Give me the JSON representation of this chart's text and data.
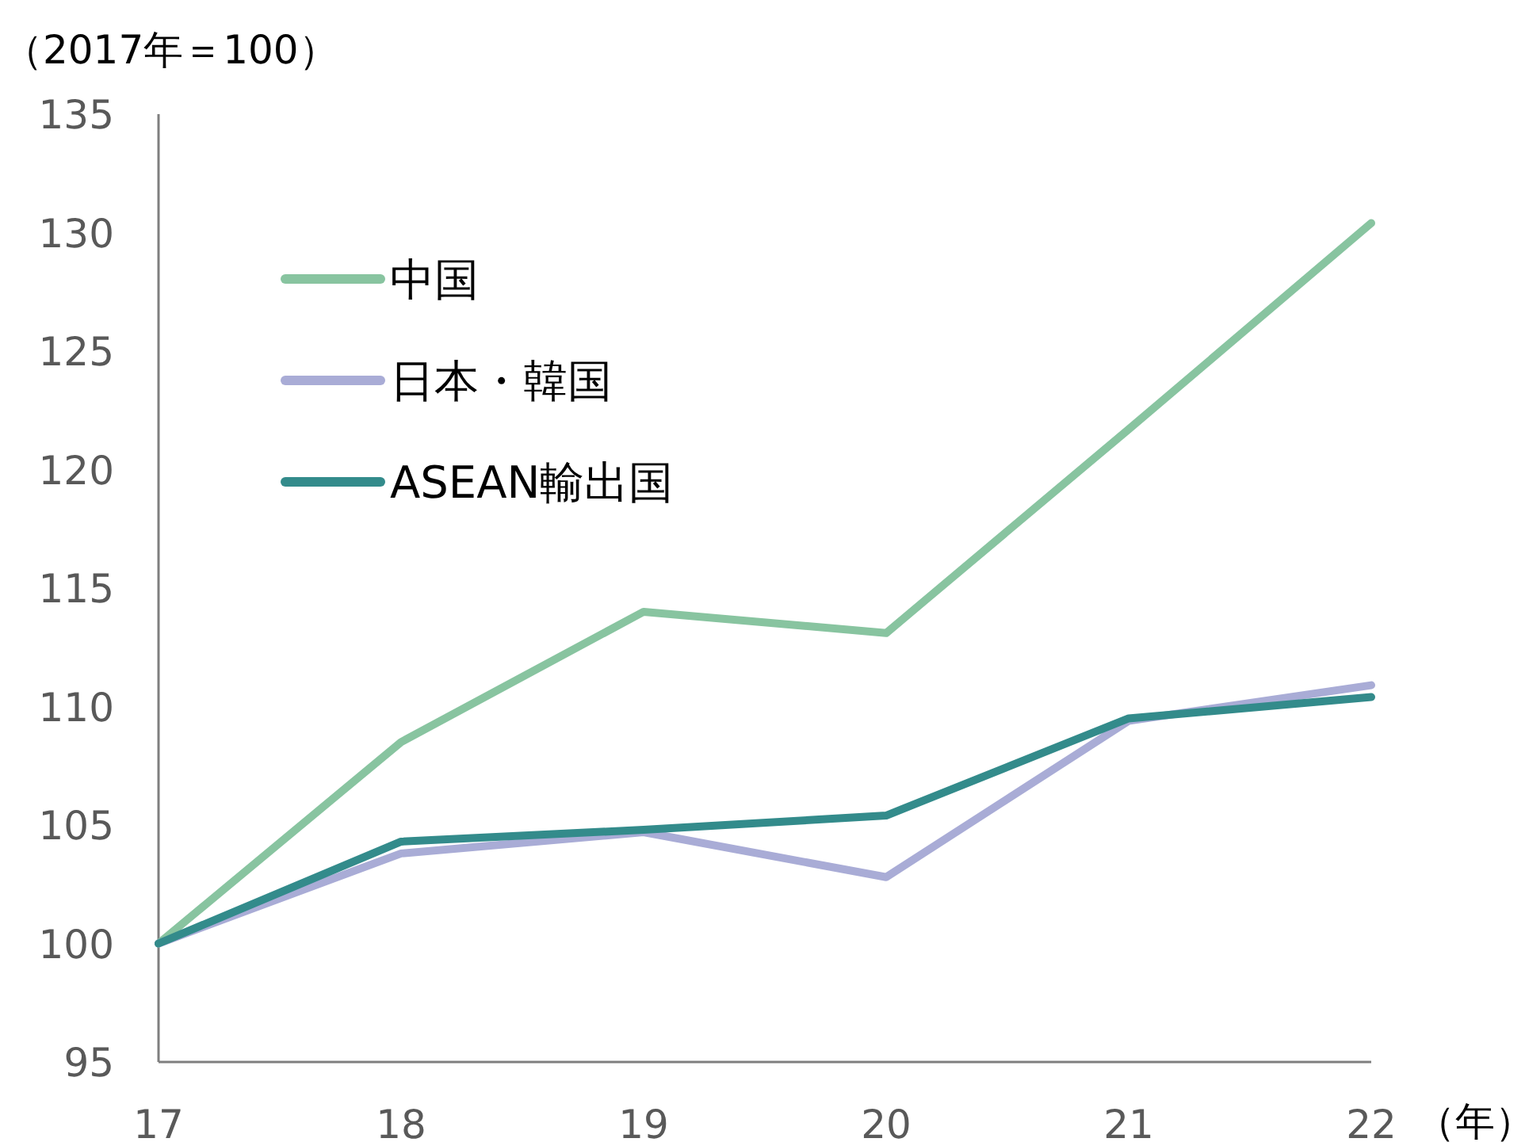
{
  "chart_data": {
    "type": "line",
    "ylabel": "（2017年＝100）",
    "xlabel": "（年）",
    "x": [
      17,
      18,
      19,
      20,
      21,
      22
    ],
    "xlim": [
      17,
      22
    ],
    "xticks": [
      17,
      18,
      19,
      20,
      21,
      22
    ],
    "ylim": [
      95,
      135
    ],
    "yticks": [
      95,
      100,
      105,
      110,
      115,
      120,
      125,
      130,
      135
    ],
    "grid": false,
    "legend": "top left",
    "series": [
      {
        "name": "中国",
        "color": "#88c4a0",
        "values": [
          100,
          108.5,
          114.0,
          113.1,
          121.7,
          130.4
        ]
      },
      {
        "name": "日本・韓国",
        "color": "#a9acd6",
        "values": [
          100,
          103.8,
          104.7,
          102.8,
          109.4,
          110.9
        ]
      },
      {
        "name": "ASEAN輸出国",
        "color": "#338b8b",
        "values": [
          100,
          104.3,
          104.8,
          105.4,
          109.5,
          110.4
        ]
      }
    ]
  }
}
